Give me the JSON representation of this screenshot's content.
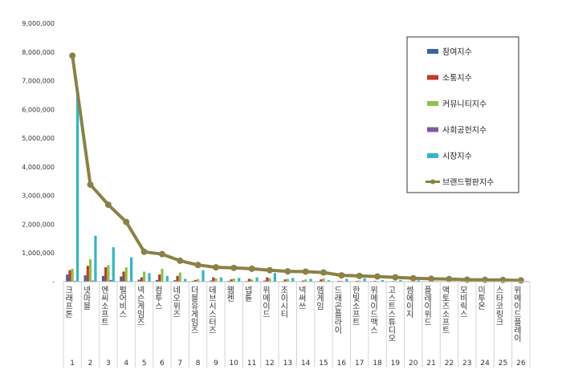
{
  "chart_data": {
    "type": "bar",
    "ylim": [
      0,
      9000000
    ],
    "yticks": [
      "9,000,000",
      "8,000,000",
      "7,000,000",
      "6,000,000",
      "5,000,000",
      "4,000,000",
      "3,000,000",
      "2,000,000",
      "1,000,000",
      "-"
    ],
    "categories": [
      "크래프톤",
      "넷마블",
      "엔씨소프트",
      "펄어비스",
      "넥슨게임즈",
      "컴투스",
      "네오위즈",
      "더블유게임즈",
      "데브시스터즈",
      "웹젠",
      "넵튠",
      "위메이드",
      "조이시티",
      "넥써쓰",
      "엠게임",
      "드래곤플라이",
      "한빛소프트",
      "위메이드맥스",
      "고스트스튜디오",
      "썸에이지",
      "플레이위드",
      "액토즈소프트",
      "모비릭스",
      "미투온",
      "스타코링크",
      "위메이드플레이"
    ],
    "ranks": [
      "1",
      "2",
      "3",
      "4",
      "5",
      "6",
      "7",
      "8",
      "9",
      "10",
      "11",
      "12",
      "13",
      "14",
      "15",
      "16",
      "17",
      "18",
      "19",
      "20",
      "21",
      "22",
      "23",
      "24",
      "25",
      "26"
    ],
    "legend_position": "top-right",
    "series": [
      {
        "name": "참여지수",
        "color": "#3a63a8",
        "type": "bar",
        "values": [
          250000,
          220000,
          200000,
          180000,
          70000,
          60000,
          50000,
          30000,
          40000,
          30000,
          25000,
          40000,
          20000,
          15000,
          20000,
          8000,
          10000,
          10000,
          5000,
          5000,
          5000,
          5000,
          3000,
          3000,
          3000,
          3000
        ]
      },
      {
        "name": "소통지수",
        "color": "#c0392b",
        "type": "bar",
        "values": [
          400000,
          550000,
          500000,
          350000,
          150000,
          250000,
          200000,
          60000,
          150000,
          80000,
          100000,
          150000,
          80000,
          40000,
          80000,
          30000,
          30000,
          30000,
          20000,
          15000,
          15000,
          15000,
          10000,
          10000,
          10000,
          10000
        ]
      },
      {
        "name": "커뮤니티지수",
        "color": "#8bc34a",
        "type": "bar",
        "values": [
          450000,
          780000,
          580000,
          500000,
          350000,
          450000,
          320000,
          90000,
          120000,
          110000,
          80000,
          120000,
          100000,
          80000,
          120000,
          30000,
          40000,
          20000,
          20000,
          20000,
          20000,
          20000,
          10000,
          10000,
          10000,
          10000
        ]
      },
      {
        "name": "사회공헌지수",
        "color": "#7d5ba6",
        "type": "bar",
        "values": [
          30000,
          40000,
          60000,
          20000,
          10000,
          10000,
          10000,
          5000,
          5000,
          5000,
          5000,
          5000,
          5000,
          5000,
          5000,
          2000,
          2000,
          2000,
          2000,
          2000,
          2000,
          2000,
          1000,
          1000,
          1000,
          1000
        ]
      },
      {
        "name": "시장지수",
        "color": "#33b5c9",
        "type": "bar",
        "values": [
          6500000,
          1600000,
          1200000,
          850000,
          300000,
          200000,
          100000,
          400000,
          150000,
          130000,
          150000,
          300000,
          130000,
          100000,
          50000,
          100000,
          120000,
          60000,
          60000,
          50000,
          20000,
          20000,
          40000,
          30000,
          20000,
          20000
        ]
      },
      {
        "name": "브랜드평판지수",
        "color": "#8b8145",
        "type": "line",
        "values": [
          7870000,
          3380000,
          2680000,
          2080000,
          1040000,
          960000,
          730000,
          580000,
          500000,
          480000,
          450000,
          400000,
          360000,
          350000,
          320000,
          220000,
          200000,
          180000,
          150000,
          120000,
          100000,
          90000,
          70000,
          65000,
          60000,
          45000
        ]
      }
    ]
  }
}
